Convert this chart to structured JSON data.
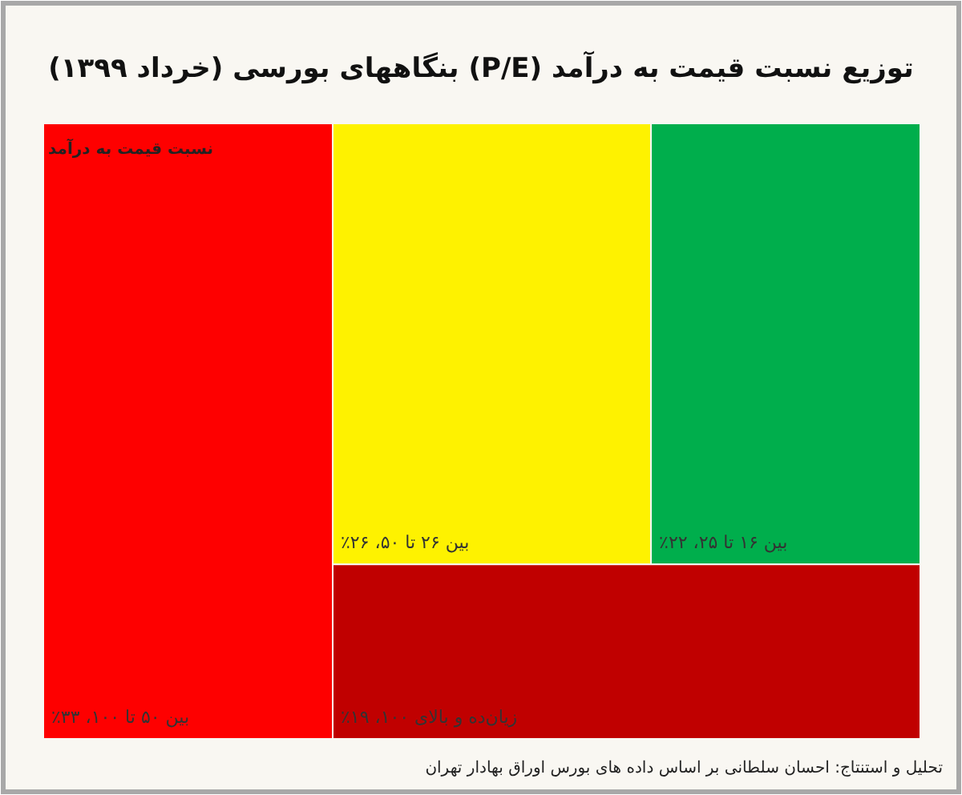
{
  "chart_data": {
    "type": "other",
    "title": "توزیع نسبت قیمت به درآمد (P/E) بنگاههای بورسی (خرداد ۱۳۹۹)",
    "categories": [
      "بین ۵۰ تا ۱۰۰،",
      "بین ۲۶ تا ۵۰،",
      "بین ۱۶ تا ۲۵،",
      "زیان‌ده و بالای ۱۰۰،"
    ],
    "values": [
      33,
      26,
      22,
      19
    ],
    "value_labels": [
      "۳۳٪",
      "۲۶٪",
      "۲۲٪",
      "۱۹٪"
    ],
    "colors": [
      "#fe0000",
      "#fef200",
      "#00ae4c",
      "#c00000"
    ],
    "annotations": [
      "نسبت قیمت به درآمد",
      "تحلیل و استنتاج: احسان سلطانی بر اساس داده های بورس اوراق بهادار تهران"
    ]
  }
}
